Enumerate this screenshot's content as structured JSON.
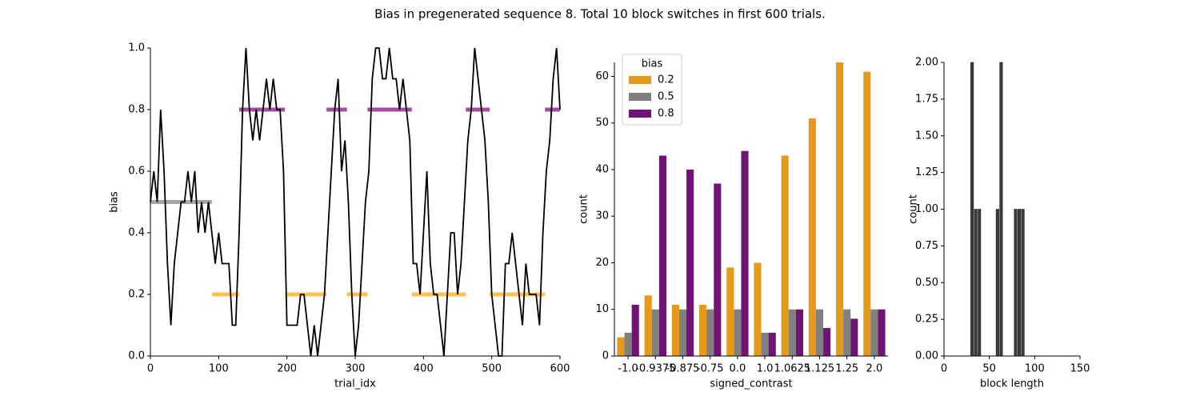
{
  "title": "Bias in pregenerated sequence 8. Total 10 block switches in first 600 trials.",
  "chart_data": [
    {
      "type": "line",
      "xlabel": "trial_idx",
      "ylabel": "bias",
      "color": "#000000",
      "xlim": [
        0,
        600
      ],
      "ylim": [
        0,
        1
      ],
      "xticks": [
        0,
        100,
        200,
        300,
        400,
        500,
        600
      ],
      "yticks": [
        {
          "value": 0,
          "label": "0.0"
        },
        0.2,
        0.4,
        0.6,
        0.8,
        {
          "value": 1,
          "label": "1.0"
        }
      ],
      "x": [
        0,
        5,
        10,
        15,
        20,
        25,
        30,
        35,
        40,
        45,
        50,
        55,
        60,
        65,
        70,
        75,
        80,
        85,
        90,
        95,
        100,
        105,
        110,
        115,
        120,
        125,
        130,
        135,
        140,
        145,
        150,
        155,
        160,
        165,
        170,
        175,
        180,
        185,
        190,
        195,
        200,
        205,
        210,
        215,
        220,
        225,
        230,
        235,
        240,
        245,
        250,
        255,
        260,
        265,
        270,
        275,
        280,
        285,
        290,
        295,
        300,
        305,
        310,
        315,
        320,
        325,
        330,
        335,
        340,
        345,
        350,
        355,
        360,
        365,
        370,
        375,
        380,
        385,
        390,
        395,
        400,
        405,
        410,
        415,
        420,
        425,
        430,
        435,
        440,
        445,
        450,
        455,
        460,
        465,
        470,
        475,
        480,
        485,
        490,
        495,
        500,
        505,
        510,
        515,
        520,
        525,
        530,
        535,
        540,
        545,
        550,
        555,
        560,
        565,
        570,
        575,
        580,
        585,
        590,
        595,
        600
      ],
      "values": [
        0.5,
        0.6,
        0.5,
        0.8,
        0.6,
        0.3,
        0.1,
        0.3,
        0.4,
        0.5,
        0.5,
        0.6,
        0.5,
        0.6,
        0.4,
        0.5,
        0.4,
        0.5,
        0.4,
        0.3,
        0.4,
        0.3,
        0.3,
        0.3,
        0.1,
        0.1,
        0.4,
        0.8,
        1.0,
        0.8,
        0.7,
        0.8,
        0.7,
        0.8,
        0.9,
        0.8,
        0.9,
        0.8,
        0.8,
        0.6,
        0.1,
        0.1,
        0.1,
        0.1,
        0.2,
        0.2,
        0.1,
        0.0,
        0.1,
        0.0,
        0.1,
        0.2,
        0.4,
        0.6,
        0.8,
        0.9,
        0.6,
        0.7,
        0.5,
        0.2,
        0.0,
        0.1,
        0.3,
        0.5,
        0.6,
        0.9,
        1.0,
        1.0,
        0.9,
        0.9,
        1.0,
        0.9,
        0.9,
        0.8,
        0.9,
        0.8,
        0.7,
        0.3,
        0.3,
        0.2,
        0.4,
        0.6,
        0.3,
        0.2,
        0.2,
        0.1,
        0.0,
        0.2,
        0.4,
        0.4,
        0.2,
        0.3,
        0.5,
        0.7,
        0.8,
        1.0,
        0.9,
        0.8,
        0.7,
        0.5,
        0.2,
        0.1,
        0.0,
        0.0,
        0.3,
        0.3,
        0.4,
        0.3,
        0.2,
        0.1,
        0.3,
        0.2,
        0.2,
        0.2,
        0.1,
        0.4,
        0.6,
        0.7,
        0.9,
        1.0,
        0.8
      ],
      "blocks": [
        {
          "start": 0,
          "end": 90,
          "value": 0.5,
          "color": "#808080"
        },
        {
          "start": 90,
          "end": 130,
          "value": 0.2,
          "color": "#ffa500"
        },
        {
          "start": 130,
          "end": 197,
          "value": 0.8,
          "color": "#800080"
        },
        {
          "start": 197,
          "end": 258,
          "value": 0.2,
          "color": "#ffa500"
        },
        {
          "start": 258,
          "end": 288,
          "value": 0.8,
          "color": "#800080"
        },
        {
          "start": 288,
          "end": 318,
          "value": 0.2,
          "color": "#ffa500"
        },
        {
          "start": 318,
          "end": 383,
          "value": 0.8,
          "color": "#800080"
        },
        {
          "start": 383,
          "end": 462,
          "value": 0.2,
          "color": "#ffa500"
        },
        {
          "start": 462,
          "end": 497,
          "value": 0.8,
          "color": "#800080"
        },
        {
          "start": 497,
          "end": 578,
          "value": 0.2,
          "color": "#ffa500"
        },
        {
          "start": 578,
          "end": 600,
          "value": 0.8,
          "color": "#800080"
        }
      ]
    },
    {
      "type": "bar",
      "xlabel": "signed_contrast",
      "ylabel": "count",
      "categories": [
        "-1.0",
        "-0.9375",
        "-0.875",
        "-0.75",
        "0.0",
        "1.0",
        "1.0625",
        "1.125",
        "1.25",
        "2.0"
      ],
      "ylim": [
        0,
        63
      ],
      "yticks": [
        0,
        10,
        20,
        30,
        40,
        50,
        60
      ],
      "legend_title": "bias",
      "legend_loc": "upper left",
      "series": [
        {
          "name": "0.2",
          "color": "#e69a1c",
          "values": [
            4,
            13,
            11,
            11,
            19,
            20,
            43,
            51,
            63,
            61
          ]
        },
        {
          "name": "0.5",
          "color": "#808080",
          "values": [
            5,
            10,
            10,
            10,
            10,
            5,
            10,
            10,
            10,
            10
          ]
        },
        {
          "name": "0.8",
          "color": "#6f1474",
          "values": [
            11,
            43,
            40,
            37,
            44,
            5,
            10,
            6,
            8,
            10
          ]
        }
      ]
    },
    {
      "type": "histogram",
      "xlabel": "block length",
      "ylabel": "count",
      "color": "#3a3a3a",
      "xlim": [
        0,
        150
      ],
      "ylim": [
        0,
        2
      ],
      "xticks": [
        0,
        50,
        100,
        150
      ],
      "yticks": [
        {
          "value": 0,
          "label": "0.00"
        },
        {
          "value": 0.25,
          "label": "0.25"
        },
        {
          "value": 0.5,
          "label": "0.50"
        },
        {
          "value": 0.75,
          "label": "0.75"
        },
        {
          "value": 1,
          "label": "1.00"
        },
        {
          "value": 1.25,
          "label": "1.25"
        },
        {
          "value": 1.5,
          "label": "1.50"
        },
        {
          "value": 1.75,
          "label": "1.75"
        },
        {
          "value": 2,
          "label": "2.00"
        }
      ],
      "bins": [
        29,
        33,
        37,
        41,
        45,
        49,
        53,
        57,
        61,
        65,
        69,
        73,
        77,
        81,
        85,
        89
      ],
      "counts": [
        2,
        1,
        1,
        0,
        0,
        0,
        0,
        1,
        2,
        0,
        0,
        0,
        1,
        1,
        1
      ]
    }
  ]
}
